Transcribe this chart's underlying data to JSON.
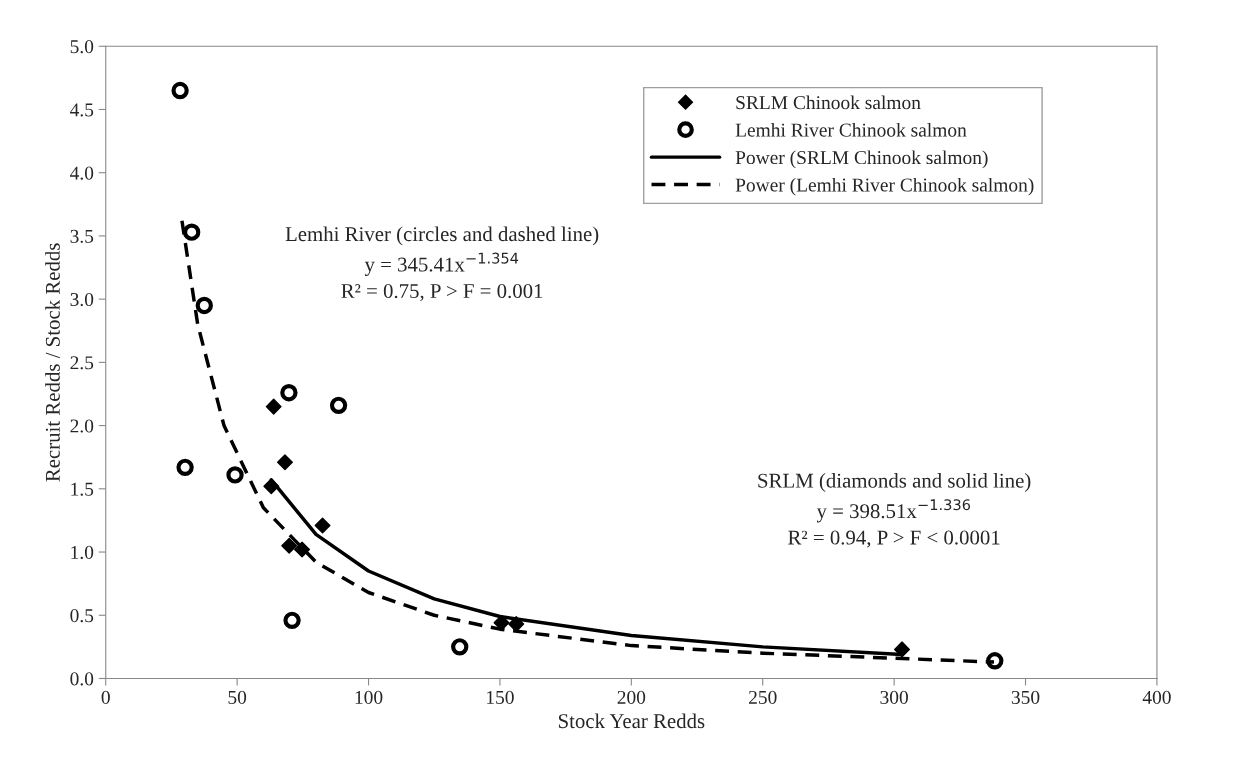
{
  "chart_data": {
    "type": "scatter",
    "xlabel": "Stock Year Redds",
    "ylabel": "Recruit Redds / Stock Redds",
    "xlim": [
      0,
      400
    ],
    "xticks": [
      0,
      50,
      100,
      150,
      200,
      250,
      300,
      350,
      400
    ],
    "ylim": [
      0,
      5.0
    ],
    "yticks": [
      {
        "value": 0,
        "label": "0.0"
      },
      {
        "value": 0.5,
        "label": "0.5"
      },
      {
        "value": 1,
        "label": "1.0"
      },
      {
        "value": 1.5,
        "label": "1.5"
      },
      {
        "value": 2,
        "label": "2.0"
      },
      {
        "value": 2.5,
        "label": "2.5"
      },
      {
        "value": 3,
        "label": "3.0"
      },
      {
        "value": 3.5,
        "label": "3.5"
      },
      {
        "value": 4,
        "label": "4.0"
      },
      {
        "value": 4.5,
        "label": "4.5"
      },
      {
        "value": 5,
        "label": "5.0"
      }
    ],
    "grid": false,
    "legend": "top right",
    "series": [
      {
        "name": "SRLM Chinook salmon",
        "marker": "diamond",
        "color": "#000000",
        "x": [
          63.9,
          68.2,
          63.0,
          82.5,
          69.8,
          74.7,
          150.6,
          156.2,
          303
        ],
        "values": [
          2.15,
          1.71,
          1.52,
          1.21,
          1.05,
          1.02,
          0.44,
          0.43,
          0.23
        ]
      },
      {
        "name": "Lemhi River Chinook salmon",
        "marker": "circle",
        "color": "#000000",
        "x": [
          28.3,
          32.7,
          37.5,
          69.7,
          88.6,
          30.2,
          49.2,
          70.9,
          134.7,
          338.3
        ],
        "values": [
          4.65,
          3.53,
          2.95,
          2.26,
          2.16,
          1.67,
          1.61,
          0.46,
          0.25,
          0.14
        ]
      },
      {
        "name": "Power (SRLM Chinook salmon)",
        "type": "line",
        "line_style": "solid",
        "color": "#000000",
        "x": [
          63,
          80,
          100,
          125,
          150,
          200,
          250,
          303
        ],
        "values": [
          1.57,
          1.14,
          0.85,
          0.63,
          0.49,
          0.34,
          0.25,
          0.19
        ]
      },
      {
        "name": "Power (Lemhi River Chinook salmon)",
        "type": "line",
        "line_style": "dashed",
        "color": "#000000",
        "x": [
          29,
          35,
          45,
          60,
          80,
          100,
          125,
          150,
          200,
          250,
          338
        ],
        "values": [
          3.62,
          2.8,
          2.0,
          1.35,
          0.92,
          0.68,
          0.5,
          0.39,
          0.26,
          0.2,
          0.13
        ]
      }
    ],
    "annotations": [
      "Lemhi River (circles and dashed line)",
      "y = 345.41x$^{−1.354}$",
      "R² = 0.75, P > F = 0.001",
      "SRLM (diamonds and solid line)",
      "y = 398.51x$^{−1.336}$",
      "R² = 0.94, P > F < 0.0001"
    ]
  }
}
